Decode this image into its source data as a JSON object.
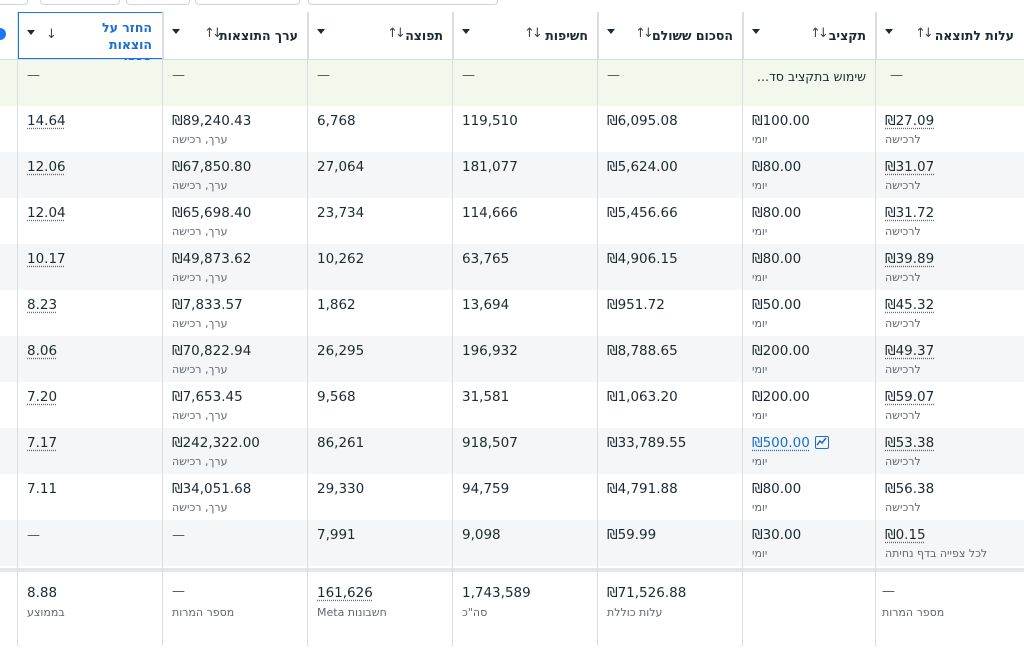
{
  "columns": [
    {
      "title": "החזר על הוצאות פרסו...",
      "line1": "החזר על",
      "line2": "הוצאות פרסו..."
    },
    {
      "title": "ערך התוצאות"
    },
    {
      "title": "תפוצה"
    },
    {
      "title": "חשיפות"
    },
    {
      "title": "הסכום ששולם"
    },
    {
      "title": "תקציב"
    },
    {
      "title": "עלות לתוצאה"
    }
  ],
  "summary": {
    "budget_text": "שימוש בתקציב סד...",
    "dash": "—"
  },
  "rows": [
    {
      "roas": "14.64",
      "value": "₪89,240.43",
      "value_sub": "ערך, רכישה",
      "reach": "6,768",
      "impressions": "119,510",
      "spent": "₪6,095.08",
      "budget": "₪100.00",
      "budget_sub": "יומי",
      "cpr": "₪27.09",
      "cpr_sub": "לרכישה"
    },
    {
      "roas": "12.06",
      "value": "₪67,850.80",
      "value_sub": "ערך, רכישה",
      "reach": "27,064",
      "impressions": "181,077",
      "spent": "₪5,624.00",
      "budget": "₪80.00",
      "budget_sub": "יומי",
      "cpr": "₪31.07",
      "cpr_sub": "לרכישה"
    },
    {
      "roas": "12.04",
      "value": "₪65,698.40",
      "value_sub": "ערך, רכישה",
      "reach": "23,734",
      "impressions": "114,666",
      "spent": "₪5,456.66",
      "budget": "₪80.00",
      "budget_sub": "יומי",
      "cpr": "₪31.72",
      "cpr_sub": "לרכישה"
    },
    {
      "roas": "10.17",
      "value": "₪49,873.62",
      "value_sub": "ערך, רכישה",
      "reach": "10,262",
      "impressions": "63,765",
      "spent": "₪4,906.15",
      "budget": "₪80.00",
      "budget_sub": "יומי",
      "cpr": "₪39.89",
      "cpr_sub": "לרכישה"
    },
    {
      "roas": "8.23",
      "value": "₪7,833.57",
      "value_sub": "ערך, רכישה",
      "reach": "1,862",
      "impressions": "13,694",
      "spent": "₪951.72",
      "budget": "₪50.00",
      "budget_sub": "יומי",
      "cpr": "₪45.32",
      "cpr_sub": "לרכישה"
    },
    {
      "roas": "8.06",
      "value": "₪70,822.94",
      "value_sub": "ערך, רכישה",
      "reach": "26,295",
      "impressions": "196,932",
      "spent": "₪8,788.65",
      "budget": "₪200.00",
      "budget_sub": "יומי",
      "cpr": "₪49.37",
      "cpr_sub": "לרכישה"
    },
    {
      "roas": "7.20",
      "value": "₪7,653.45",
      "value_sub": "ערך, רכישה",
      "reach": "9,568",
      "impressions": "31,581",
      "spent": "₪1,063.20",
      "budget": "₪200.00",
      "budget_sub": "יומי",
      "cpr": "₪59.07",
      "cpr_sub": "לרכישה"
    },
    {
      "roas": "7.17",
      "value": "₪242,322.00",
      "value_sub": "ערך, רכישה",
      "reach": "86,261",
      "impressions": "918,507",
      "spent": "₪33,789.55",
      "budget": "₪500.00",
      "budget_sub": "יומי",
      "cpr": "₪53.38",
      "cpr_sub": "לרכישה"
    },
    {
      "roas": "7.11",
      "value": "₪34,051.68",
      "value_sub": "ערך, רכישה",
      "reach": "29,330",
      "impressions": "94,759",
      "spent": "₪4,791.88",
      "budget": "₪80.00",
      "budget_sub": "יומי",
      "cpr": "₪56.38",
      "cpr_sub": "לרכישה"
    },
    {
      "roas": "—",
      "value": "—",
      "value_sub": "",
      "reach": "7,991",
      "impressions": "9,098",
      "spent": "₪59.99",
      "budget": "₪30.00",
      "budget_sub": "יומי",
      "cpr": "₪0.15",
      "cpr_sub": "לכל צפייה בדף נחיתה"
    }
  ],
  "footer": {
    "roas": "8.88",
    "roas_sub": "בממוצע",
    "value": "—",
    "value_sub": "מספר המרות",
    "reach": "161,626",
    "reach_sub": "חשבונות Meta",
    "impressions": "1,743,589",
    "impressions_sub": "סה\"כ",
    "spent": "₪71,526.88",
    "spent_sub": "עלות כוללת",
    "cpr": "—",
    "cpr_sub": "מספר המרות"
  },
  "icons": {
    "sort": "sort-arrows-icon",
    "caret": "caret-down-icon",
    "trend": "trend-chart-icon",
    "add": "add-column-icon"
  },
  "colors": {
    "accent": "#1877f2",
    "summary_bg": "#f3f8ed",
    "row_shade": "#f5f6f7",
    "link": "#1a6fd0"
  }
}
